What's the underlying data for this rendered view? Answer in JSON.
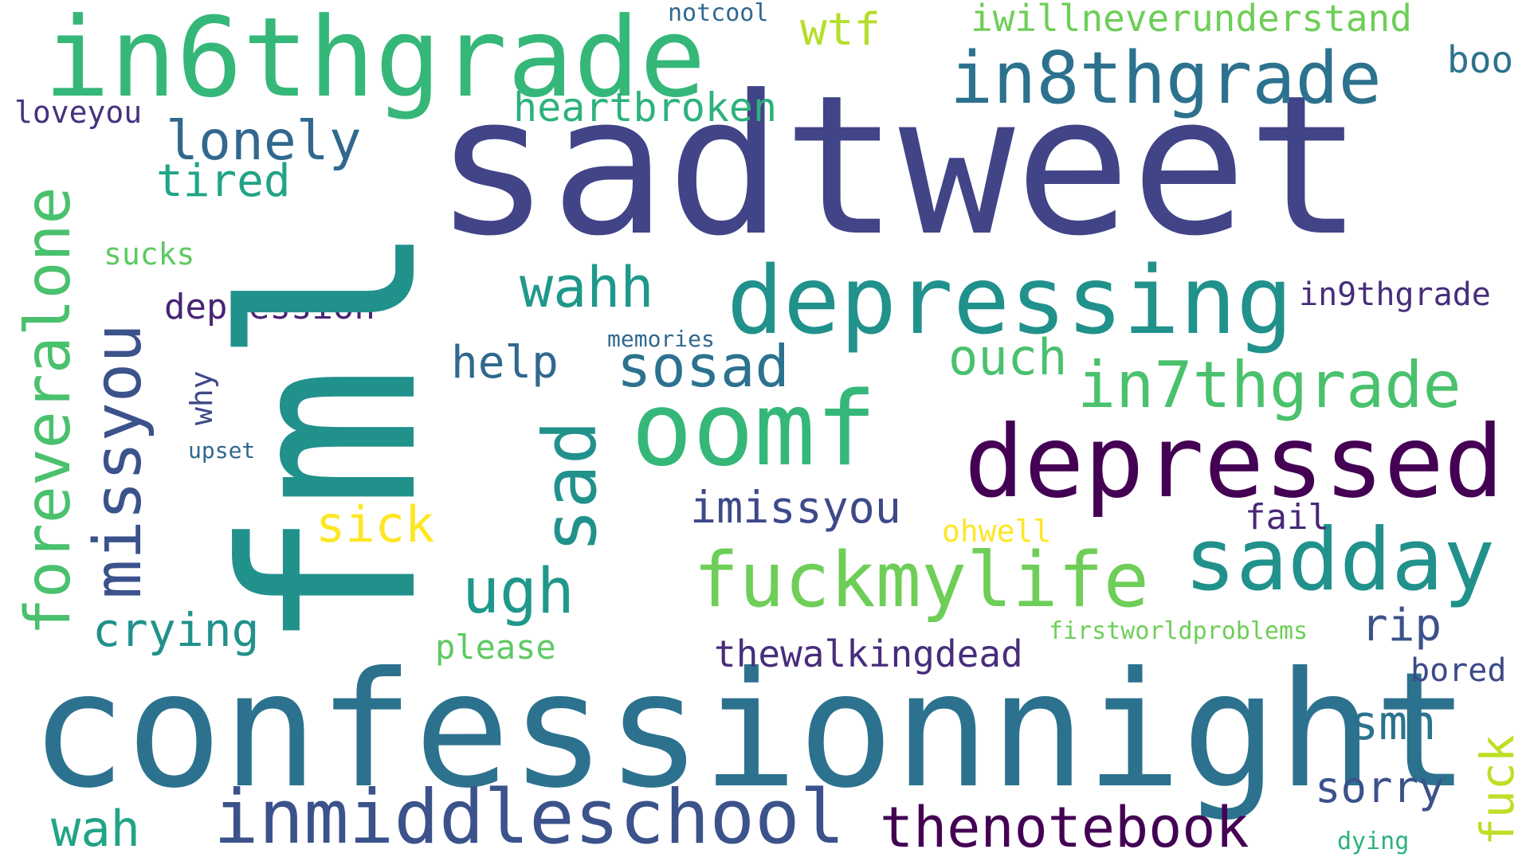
{
  "words": [
    {
      "text": "sadtweet",
      "color": "#414487"
    },
    {
      "text": "fml",
      "color": "#21918c"
    },
    {
      "text": "confessionnight",
      "color": "#2c728e"
    },
    {
      "text": "in6thgrade",
      "color": "#35b779"
    },
    {
      "text": "depressing",
      "color": "#21918c"
    },
    {
      "text": "depressed",
      "color": "#440154"
    },
    {
      "text": "oomf",
      "color": "#35b779"
    },
    {
      "text": "inmiddleschool",
      "color": "#3b528b"
    },
    {
      "text": "in8thgrade",
      "color": "#2c728e"
    },
    {
      "text": "sadday",
      "color": "#21918c"
    },
    {
      "text": "fuckmylife",
      "color": "#6ece58"
    },
    {
      "text": "in7thgrade",
      "color": "#4ac16d"
    },
    {
      "text": "thenotebook",
      "color": "#440154"
    },
    {
      "text": "foreveralone",
      "color": "#4ac16d"
    },
    {
      "text": "missyou",
      "color": "#3b528b"
    },
    {
      "text": "sad",
      "color": "#21918c"
    },
    {
      "text": "sosad",
      "color": "#2c728e"
    },
    {
      "text": "lonely",
      "color": "#31688e"
    },
    {
      "text": "ugh",
      "color": "#1f988b"
    },
    {
      "text": "wahh",
      "color": "#1f988b"
    },
    {
      "text": "imissyou",
      "color": "#3e4989"
    },
    {
      "text": "heartbroken",
      "color": "#2db27d"
    },
    {
      "text": "crying",
      "color": "#21918c"
    },
    {
      "text": "wah",
      "color": "#20a486"
    },
    {
      "text": "smh",
      "color": "#2c728e"
    },
    {
      "text": "sorry",
      "color": "#3b528b"
    },
    {
      "text": "tired",
      "color": "#20a486"
    },
    {
      "text": "sick",
      "color": "#fde725"
    },
    {
      "text": "ouch",
      "color": "#4ac16d"
    },
    {
      "text": "help",
      "color": "#31688e"
    },
    {
      "text": "wtf",
      "color": "#b5de2b"
    },
    {
      "text": "boo",
      "color": "#2c728e"
    },
    {
      "text": "rip",
      "color": "#3b528b"
    },
    {
      "text": "fuck",
      "color": "#bddf26"
    },
    {
      "text": "depression",
      "color": "#482475"
    },
    {
      "text": "thewalkingdead",
      "color": "#472d7b"
    },
    {
      "text": "iwillneverunderstand",
      "color": "#6ece58"
    },
    {
      "text": "in9thgrade",
      "color": "#472d7b"
    },
    {
      "text": "fail",
      "color": "#482878"
    },
    {
      "text": "please",
      "color": "#5ec962"
    },
    {
      "text": "bored",
      "color": "#3e4989"
    },
    {
      "text": "loveyou",
      "color": "#46327e"
    },
    {
      "text": "sucks",
      "color": "#5ec962"
    },
    {
      "text": "ohwell",
      "color": "#fde725"
    },
    {
      "text": "why",
      "color": "#3e4989"
    },
    {
      "text": "notcool",
      "color": "#31688e"
    },
    {
      "text": "memories",
      "color": "#31688e"
    },
    {
      "text": "upset",
      "color": "#31688e"
    },
    {
      "text": "firstworldproblems",
      "color": "#6ece58"
    },
    {
      "text": "dying",
      "color": "#2db27d"
    }
  ]
}
